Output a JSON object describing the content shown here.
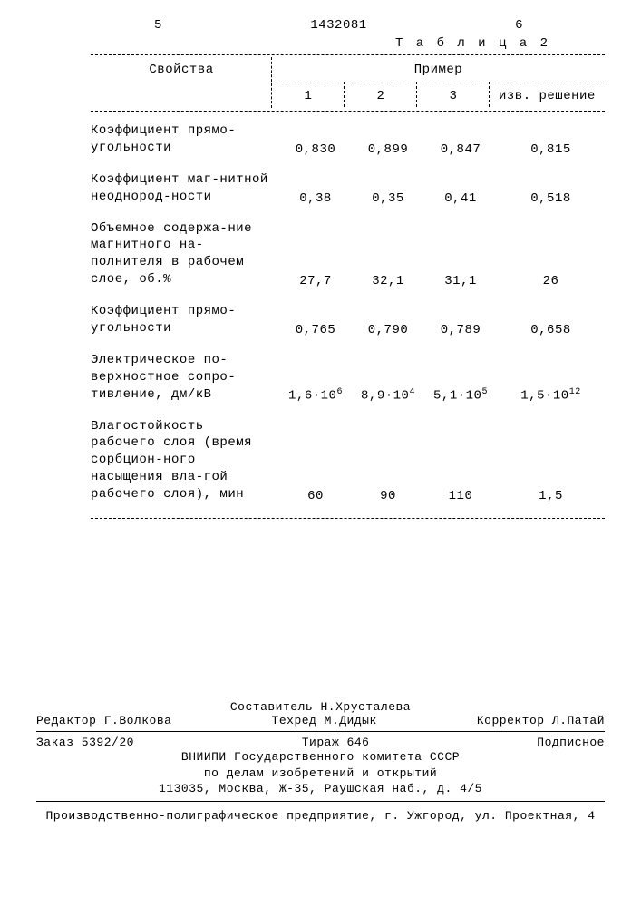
{
  "header": {
    "left_page": "5",
    "doc_number": "1432081",
    "right_page": "6"
  },
  "table": {
    "caption": "Т а б л и ц а  2",
    "columns": {
      "properties": "Свойства",
      "example": "Пример",
      "c1": "1",
      "c2": "2",
      "c3": "3",
      "izv": "изв. решение"
    },
    "rows": [
      {
        "label": "Коэффициент прямо-угольности",
        "v1": "0,830",
        "v2": "0,899",
        "v3": "0,847",
        "izv": "0,815"
      },
      {
        "label": "Коэффициент маг-нитной неоднород-ности",
        "v1": "0,38",
        "v2": "0,35",
        "v3": "0,41",
        "izv": "0,518"
      },
      {
        "label": "Объемное содержа-ние магнитного на-полнителя в рабочем слое, об.%",
        "v1": "27,7",
        "v2": "32,1",
        "v3": "31,1",
        "izv": "26"
      },
      {
        "label": "Коэффициент прямо-угольности",
        "v1": "0,765",
        "v2": "0,790",
        "v3": "0,789",
        "izv": "0,658"
      },
      {
        "label": "Электрическое по-верхностное сопро-тивление, дм/кВ",
        "v1_html": "1,6·10<sup>6</sup>",
        "v2_html": "8,9·10<sup>4</sup>",
        "v3_html": "5,1·10<sup>5</sup>",
        "izv_html": "1,5·10<sup>12</sup>"
      },
      {
        "label": "Влагостойкость рабочего слоя (время сорбцион-ного насыщения вла-гой рабочего слоя), мин",
        "v1": "60",
        "v2": "90",
        "v3": "110",
        "izv": "1,5"
      }
    ]
  },
  "credits": {
    "compiler": "Составитель Н.Хрусталева",
    "editor": "Редактор Г.Волкова",
    "techred": "Техред М.Дидык",
    "corrector": "Корректор Л.Патай",
    "order": "Заказ 5392/20",
    "tirage": "Тираж 646",
    "subscribed": "Подписное",
    "org1": "ВНИИПИ Государственного комитета СССР",
    "org2": "по делам изобретений и открытий",
    "address": "113035, Москва, Ж-35, Раушская наб., д. 4/5",
    "printer": "Производственно-полиграфическое предприятие, г. Ужгород, ул. Проектная, 4"
  },
  "style": {
    "font_family": "Courier New, monospace",
    "font_size_pt": 14,
    "text_color": "#000000",
    "background_color": "#ffffff",
    "line_style": "dashed",
    "line_color": "#000000"
  }
}
